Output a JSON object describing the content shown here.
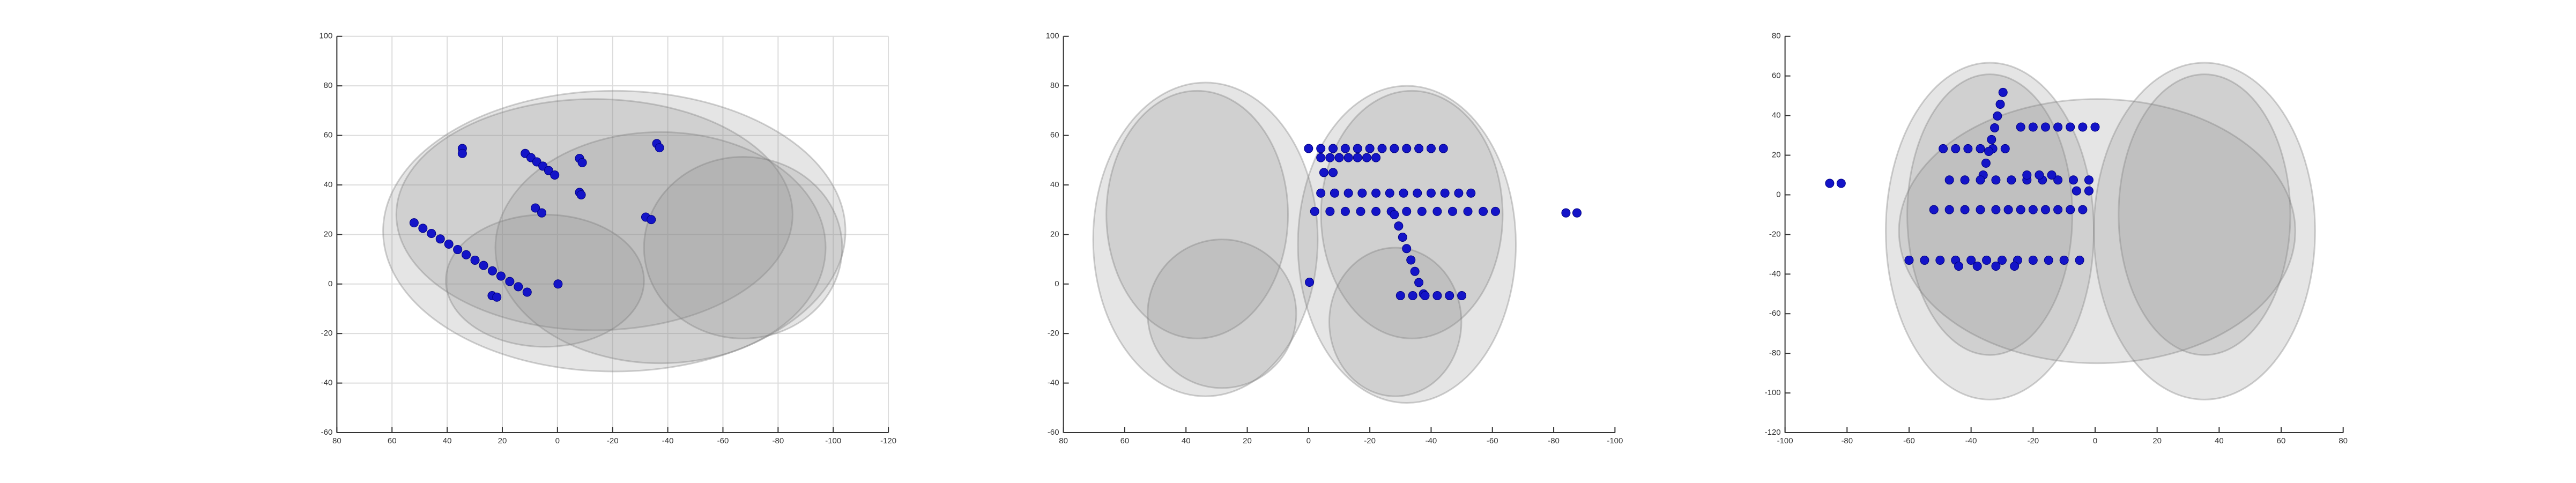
{
  "chart_data": [
    {
      "type": "scatter",
      "color": "#1414c8",
      "grid": true,
      "xlim": [
        80,
        -120
      ],
      "xticks": [
        80,
        60,
        40,
        20,
        0,
        -20,
        -40,
        -60,
        -80,
        -100,
        -120
      ],
      "ylim": [
        -60,
        100
      ],
      "yticks": [
        -60,
        -40,
        -20,
        0,
        20,
        40,
        60,
        80,
        100
      ],
      "x": [
        34.5,
        34.5,
        11.7,
        9.6,
        7.5,
        5.3,
        3.2,
        1,
        -8,
        -9,
        -8,
        -8.6,
        8,
        5.7,
        -36,
        -37,
        -32,
        -34,
        52,
        48.8,
        45.7,
        42.5,
        39.4,
        36.2,
        33.1,
        29.9,
        26.8,
        23.6,
        20.5,
        17.3,
        14.2,
        11,
        23.7,
        22,
        -0.2
      ],
      "values": [
        54.7,
        52.7,
        52.7,
        51,
        49.3,
        47.6,
        45.8,
        44,
        50.7,
        49,
        37,
        36,
        30.7,
        28.7,
        56.7,
        55,
        27,
        26,
        24.7,
        22.5,
        20.4,
        18.2,
        16.1,
        13.9,
        11.8,
        9.6,
        7.5,
        5.3,
        3.2,
        1,
        -1.1,
        -3.3,
        -4.7,
        -5.3,
        0
      ]
    },
    {
      "type": "scatter",
      "color": "#1414c8",
      "grid": false,
      "xlim": [
        80,
        -100
      ],
      "xticks": [
        80,
        60,
        40,
        20,
        0,
        -20,
        -40,
        -60,
        -80,
        -100
      ],
      "ylim": [
        -60,
        100
      ],
      "yticks": [
        -60,
        -40,
        -20,
        0,
        20,
        40,
        60,
        80,
        100
      ],
      "x": [
        0,
        -4,
        -8,
        -12,
        -16,
        -20,
        -24,
        -28,
        -32,
        -36,
        -40,
        -44,
        -4,
        -7,
        -10,
        -13,
        -16,
        -19,
        -22,
        -5,
        -8,
        -4,
        -8.5,
        -13,
        -17.5,
        -22,
        -26.5,
        -31,
        -35.5,
        -40,
        -44.5,
        -49,
        -53,
        -2,
        -7,
        -12,
        -17,
        -22,
        -27,
        -32,
        -37,
        -42,
        -47,
        -52,
        -57,
        -61,
        -28,
        -29.4,
        -30.7,
        -32,
        -33.4,
        -34.7,
        -36,
        -37.5,
        -30,
        -34,
        -38,
        -42,
        -46,
        -50,
        -84,
        -87.6,
        -0.3
      ],
      "values": [
        54.7,
        54.7,
        54.7,
        54.7,
        54.7,
        54.7,
        54.7,
        54.7,
        54.7,
        54.7,
        54.7,
        54.7,
        51,
        51,
        51,
        51,
        51,
        51,
        51,
        45,
        45,
        36.7,
        36.7,
        36.7,
        36.7,
        36.7,
        36.7,
        36.7,
        36.7,
        36.7,
        36.7,
        36.7,
        36.7,
        29.3,
        29.3,
        29.3,
        29.3,
        29.3,
        29.3,
        29.3,
        29.3,
        29.3,
        29.3,
        29.3,
        29.3,
        29.3,
        28,
        23.4,
        18.9,
        14.3,
        9.7,
        5.1,
        0.6,
        -4,
        -4.7,
        -4.7,
        -4.7,
        -4.7,
        -4.7,
        -4.7,
        28.7,
        28.7,
        0.7
      ]
    },
    {
      "type": "scatter",
      "color": "#1414c8",
      "grid": false,
      "xlim": [
        -100,
        80
      ],
      "xticks": [
        -100,
        -80,
        -60,
        -40,
        -20,
        0,
        20,
        40,
        60,
        80
      ],
      "ylim": [
        -120,
        80
      ],
      "yticks": [
        -120,
        -100,
        -80,
        -60,
        -40,
        -20,
        0,
        20,
        40,
        60,
        80
      ],
      "x": [
        -85.6,
        -81.9,
        -24,
        -20,
        -16,
        -12,
        -8,
        -4,
        0,
        -49,
        -45,
        -41,
        -37,
        -33,
        -29,
        -29.7,
        -30.6,
        -31.5,
        -32.4,
        -33.4,
        -34.3,
        -35.2,
        -36.1,
        -47,
        -42,
        -37,
        -32,
        -27,
        -22,
        -17,
        -12,
        -7,
        -2,
        -22,
        -18,
        -14,
        -6,
        -2,
        -52,
        -47,
        -42,
        -37,
        -32,
        -28,
        -24,
        -20,
        -16,
        -12,
        -8,
        -4,
        -60,
        -55,
        -50,
        -45,
        -40,
        -35,
        -30,
        -25,
        -20,
        -15,
        -10,
        -5,
        -44,
        -38,
        -32,
        -26
      ],
      "values": [
        5.8,
        5.8,
        34.2,
        34.2,
        34.2,
        34.2,
        34.2,
        34.2,
        34.2,
        23.3,
        23.3,
        23.3,
        23.3,
        23.3,
        23.3,
        51.7,
        45.7,
        39.8,
        33.8,
        27.9,
        21.9,
        16,
        10,
        7.5,
        7.5,
        7.5,
        7.5,
        7.5,
        7.5,
        7.5,
        7.5,
        7.5,
        7.5,
        10,
        10,
        10,
        2,
        2,
        -7.5,
        -7.5,
        -7.5,
        -7.5,
        -7.5,
        -7.5,
        -7.5,
        -7.5,
        -7.5,
        -7.5,
        -7.5,
        -7.5,
        -33,
        -33,
        -33,
        -33,
        -33,
        -33,
        -33,
        -33,
        -33,
        -33,
        -33,
        -33,
        -36,
        -36,
        -36,
        -36
      ]
    }
  ]
}
